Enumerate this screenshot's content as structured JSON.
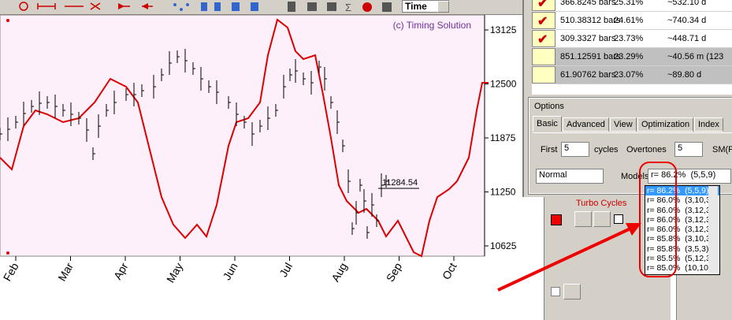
{
  "toolbar": {
    "time_select": "Time"
  },
  "chart": {
    "watermark": "(c) Timing Solution",
    "y_labels": [
      "13125",
      "12500",
      "11875",
      "11250",
      "10625"
    ],
    "price_label": "11284.54",
    "months": [
      "Feb",
      "Mar",
      "Apr",
      "May",
      "Jun",
      "Jul",
      "Aug",
      "Sep",
      "Oct"
    ]
  },
  "cycles_table": {
    "rows": [
      [
        "366.8245 bars",
        "25.31%",
        "~532.10 d"
      ],
      [
        "510.38312 bars",
        "24.61%",
        "~740.34 d"
      ],
      [
        "309.3327 bars",
        "23.73%",
        "~448.71 d"
      ],
      [
        "851.12591 bars",
        "23.29%",
        "~40.56 m (123"
      ],
      [
        "61.90762 bars",
        "23.07%",
        "~89.80 d"
      ]
    ]
  },
  "options": {
    "title": "Options",
    "tabs": [
      "Basic",
      "Advanced",
      "View",
      "Optimization",
      "Index"
    ],
    "first_label": "First",
    "first_value": "5",
    "cycles_label": "cycles",
    "overtones_label": "Overtones",
    "overtones_value": "5",
    "sm_label": "SM(P",
    "mode": "Normal",
    "models_label": "Models",
    "models_value": "r= 86.2%  (5,5,9)",
    "models_list": [
      "r= 86.2%  (5,5,9)",
      "r= 86.0%  (3,10,3",
      "r= 86.0%  (3,12,3",
      "r= 86.0%  (3,12,3",
      "r= 86.0%  (3,12,3",
      "r= 85.8%  (3,10,3",
      "r= 85.8%  (3,5,3)",
      "r= 85.5%  (5,12,3",
      "r= 85.0%  (10,10,"
    ]
  },
  "turbo": {
    "title": "Turbo Cycles"
  }
}
